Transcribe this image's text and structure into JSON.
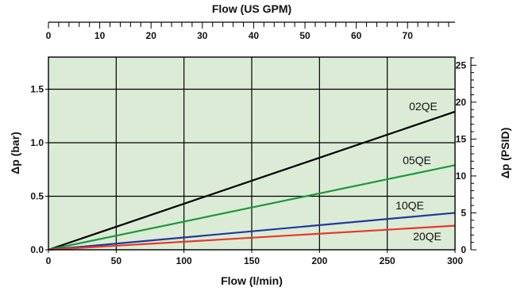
{
  "chart_data": {
    "type": "line",
    "title": "Flow (US GPM)",
    "xlabel": "Flow (l/min)",
    "ylabel": "Δp (bar)",
    "y2label": "Δp (PSID)",
    "xlim": [
      0,
      300
    ],
    "ylim": [
      0,
      1.8
    ],
    "x_ticks": [
      0,
      50,
      100,
      150,
      200,
      250,
      300
    ],
    "y_ticks": [
      0.0,
      0.5,
      1.0,
      1.5
    ],
    "y_tick_labels": [
      "0.0",
      "0.5",
      "1.0",
      "1.5"
    ],
    "top_axis": {
      "label": "Flow (US GPM)",
      "ticks": [
        0,
        10,
        20,
        30,
        40,
        50,
        60,
        70
      ]
    },
    "right_axis": {
      "label": "Δp (PSID)",
      "ticks": [
        0,
        5,
        10,
        15,
        20,
        25
      ]
    },
    "grid": true,
    "background": "#dcebd6",
    "series": [
      {
        "name": "02QE",
        "color": "#000000",
        "x": [
          0,
          300
        ],
        "y": [
          0,
          1.29
        ]
      },
      {
        "name": "05QE",
        "color": "#1a9a3a",
        "x": [
          0,
          300
        ],
        "y": [
          0,
          0.79
        ]
      },
      {
        "name": "10QE",
        "color": "#1f3a99",
        "x": [
          0,
          300
        ],
        "y": [
          0,
          0.345
        ]
      },
      {
        "name": "20QE",
        "color": "#e33a2a",
        "x": [
          0,
          300
        ],
        "y": [
          0,
          0.225
        ]
      }
    ]
  }
}
